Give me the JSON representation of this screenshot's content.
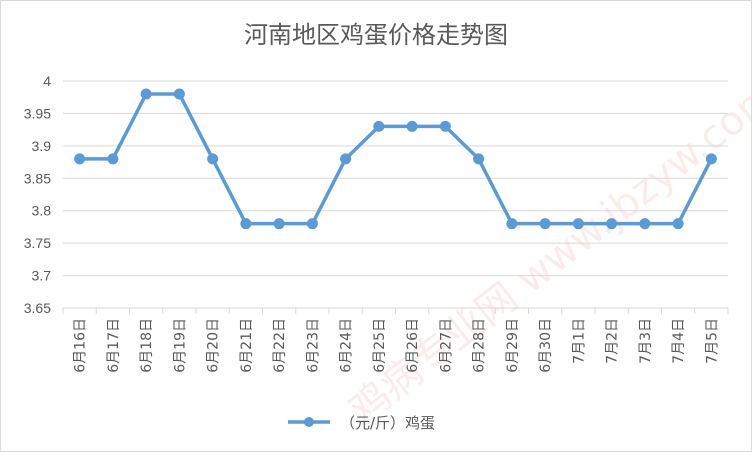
{
  "chart_data": {
    "type": "line",
    "title": "河南地区鸡蛋价格走势图",
    "categories": [
      "6月16日",
      "6月17日",
      "6月18日",
      "6月19日",
      "6月20日",
      "6月21日",
      "6月22日",
      "6月23日",
      "6月24日",
      "6月25日",
      "6月26日",
      "6月27日",
      "6月28日",
      "6月29日",
      "6月30日",
      "7月1日",
      "7月2日",
      "7月3日",
      "7月4日",
      "7月5日"
    ],
    "series": [
      {
        "name": "（元/斤）鸡蛋",
        "values": [
          3.88,
          3.88,
          3.98,
          3.98,
          3.88,
          3.78,
          3.78,
          3.78,
          3.88,
          3.93,
          3.93,
          3.93,
          3.88,
          3.78,
          3.78,
          3.78,
          3.78,
          3.78,
          3.78,
          3.88
        ]
      }
    ],
    "y_ticks": [
      "3.65",
      "3.7",
      "3.75",
      "3.8",
      "3.85",
      "3.9",
      "3.95",
      "4"
    ],
    "ylim": [
      3.65,
      4.0
    ],
    "xlabel": "",
    "ylabel": "",
    "grid": "horizontal",
    "legend_position": "bottom",
    "line_color": "#5b9bd5",
    "watermark": "鸡病专业网 www.jbzyw.com"
  }
}
